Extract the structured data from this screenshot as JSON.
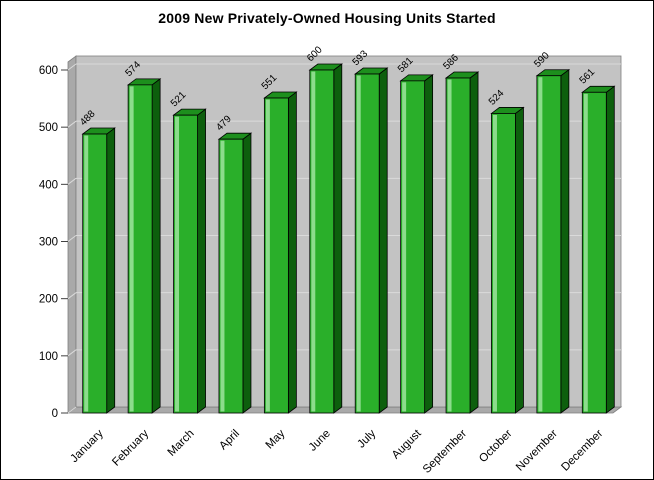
{
  "window": {
    "title": "2009 New Privately-Owned Housing Units Started"
  },
  "chart_data": {
    "type": "bar",
    "title": "2009 New Privately-Owned Housing Units Started",
    "categories": [
      "January",
      "February",
      "March",
      "April",
      "May",
      "June",
      "July",
      "August",
      "September",
      "October",
      "November",
      "December"
    ],
    "values": [
      488,
      574,
      521,
      479,
      551,
      600,
      593,
      581,
      586,
      524,
      590,
      561
    ],
    "xlabel": "",
    "ylabel": "",
    "ylim": [
      0,
      600
    ],
    "yticks": [
      0,
      100,
      200,
      300,
      400,
      500,
      600
    ],
    "grid": true,
    "legend": false,
    "style_3d": true,
    "colors": {
      "bar_front": "#2aaf2a",
      "bar_highlight": "#8cdc8c",
      "bar_side": "#0d5f0d",
      "bar_top": "#1d8f1d",
      "bar_outline": "#000000",
      "back_wall": "#c3c3c3",
      "left_wall": "#a9a9a9",
      "floor": "#a9a9a9",
      "gridline": "#dadada",
      "wall_edge": "#7f7f7f",
      "tick": "#404040",
      "text": "#000000",
      "background": "#ffffff"
    }
  }
}
